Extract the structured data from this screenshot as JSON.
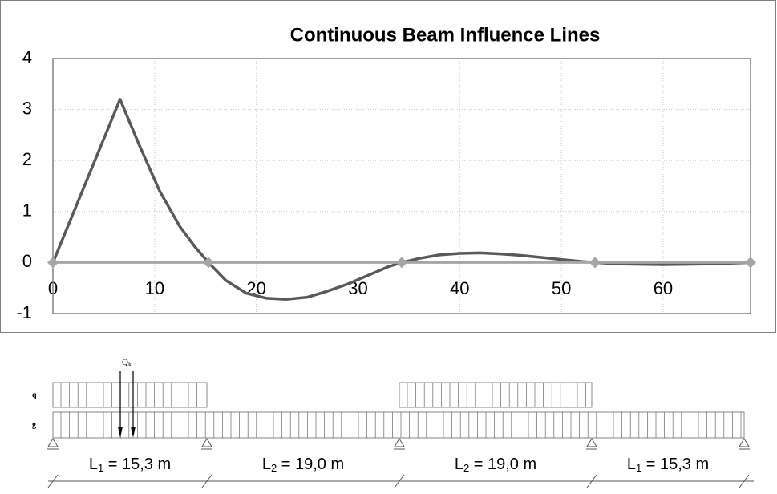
{
  "chart_data": {
    "type": "line",
    "title": "Continuous Beam Influence Lines",
    "xlim": [
      0,
      68.6
    ],
    "ylim": [
      -1,
      4
    ],
    "xticks": [
      0,
      10,
      20,
      30,
      40,
      50,
      60
    ],
    "yticks": [
      -1,
      0,
      1,
      2,
      3,
      4
    ],
    "grid": true,
    "series": [
      {
        "color": "#595959",
        "x": [
          0,
          6.6,
          8.5,
          10.5,
          12.5,
          14,
          15.3,
          17,
          19,
          21,
          23,
          25,
          27,
          29,
          31,
          33,
          34.3,
          36,
          38,
          40,
          42,
          44,
          46,
          48,
          50,
          52,
          53.3,
          56,
          60,
          64,
          68.6
        ],
        "values": [
          0,
          3.2,
          2.3,
          1.4,
          0.7,
          0.3,
          0,
          -0.35,
          -0.6,
          -0.7,
          -0.72,
          -0.68,
          -0.56,
          -0.42,
          -0.25,
          -0.08,
          0,
          0.08,
          0.15,
          0.18,
          0.19,
          0.17,
          0.14,
          0.1,
          0.06,
          0.02,
          0,
          -0.03,
          -0.04,
          -0.03,
          0
        ]
      },
      {
        "color": "#a6a6a6",
        "marker": "diamond",
        "x": [
          0,
          15.3,
          34.3,
          53.3,
          68.6
        ],
        "values": [
          0,
          0,
          0,
          0,
          0
        ]
      }
    ]
  },
  "diagram": {
    "load_q": "q",
    "load_g": "g",
    "point_load": {
      "symbol": "Q",
      "index": "k"
    },
    "spans": [
      {
        "symbol": "L",
        "index": "1",
        "text": " = 15,3 m"
      },
      {
        "symbol": "L",
        "index": "2",
        "text": " = 19,0 m"
      },
      {
        "symbol": "L",
        "index": "2",
        "text": " = 19,0 m"
      },
      {
        "symbol": "L",
        "index": "1",
        "text": " = 15,3 m"
      }
    ]
  }
}
